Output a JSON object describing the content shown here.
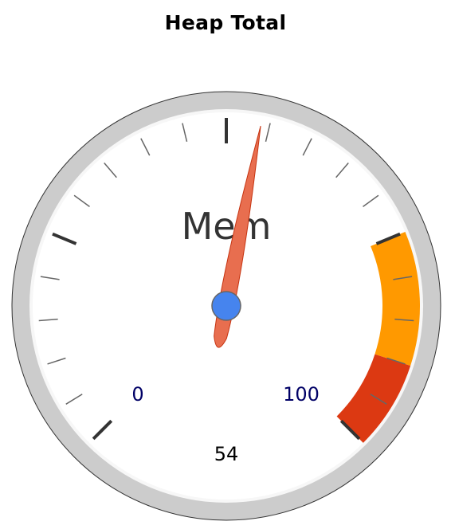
{
  "chart_data": {
    "type": "gauge",
    "title": "Heap Total",
    "label": "Mem",
    "value": 54,
    "value_label": "54",
    "min": 0,
    "max": 100,
    "min_label": "0",
    "max_label": "100",
    "major_ticks": 5,
    "minor_ticks_per_major": 4,
    "bands": [
      {
        "name": "warning",
        "from": 75,
        "to": 90,
        "color": "#ff9900"
      },
      {
        "name": "critical",
        "from": 90,
        "to": 100,
        "color": "#dc3912"
      }
    ],
    "colors": {
      "bezel": "#cccccc",
      "face": "#ffffff",
      "needle": "#e86e4f",
      "needle_stroke": "#c63310",
      "hub": "#4684ee",
      "hub_stroke": "#666666",
      "range_label": "#000066"
    }
  }
}
